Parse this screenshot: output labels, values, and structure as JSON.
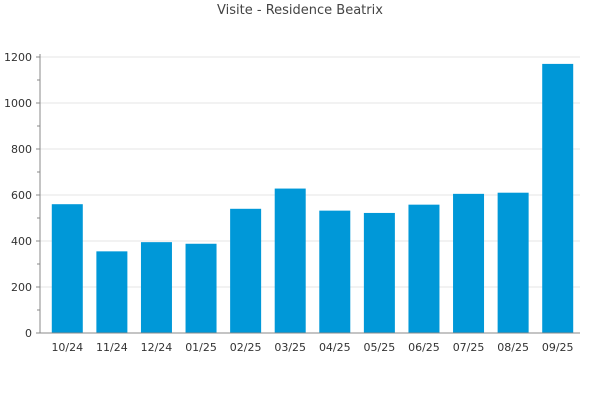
{
  "chart_data": {
    "type": "bar",
    "title": "Visite - Residence Beatrix",
    "xlabel": "",
    "ylabel": "",
    "categories": [
      "10/24",
      "11/24",
      "12/24",
      "01/25",
      "02/25",
      "03/25",
      "04/25",
      "05/25",
      "06/25",
      "07/25",
      "08/25",
      "09/25"
    ],
    "values": [
      560,
      355,
      395,
      388,
      540,
      628,
      532,
      522,
      558,
      605,
      610,
      1170
    ],
    "ylim": [
      0,
      1200
    ],
    "yticks": [
      0,
      200,
      400,
      600,
      800,
      1000,
      1200
    ],
    "grid": true,
    "legend": "none",
    "bar_color": "#0098d8",
    "grid_color": "#e6e6e6",
    "axis_color": "#888888"
  }
}
